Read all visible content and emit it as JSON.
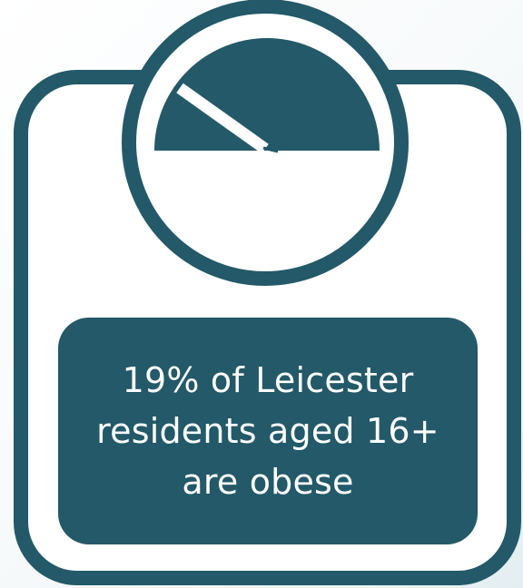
{
  "infographic": {
    "stat_lines": [
      "19% of Leicester",
      "residents aged 16+",
      "are obese"
    ]
  },
  "colors": {
    "primary": "#235968",
    "frame_background": "#ffffff",
    "text": "#ffffff"
  },
  "icons": [
    "weighing-scale-icon",
    "dial-needle-icon"
  ]
}
